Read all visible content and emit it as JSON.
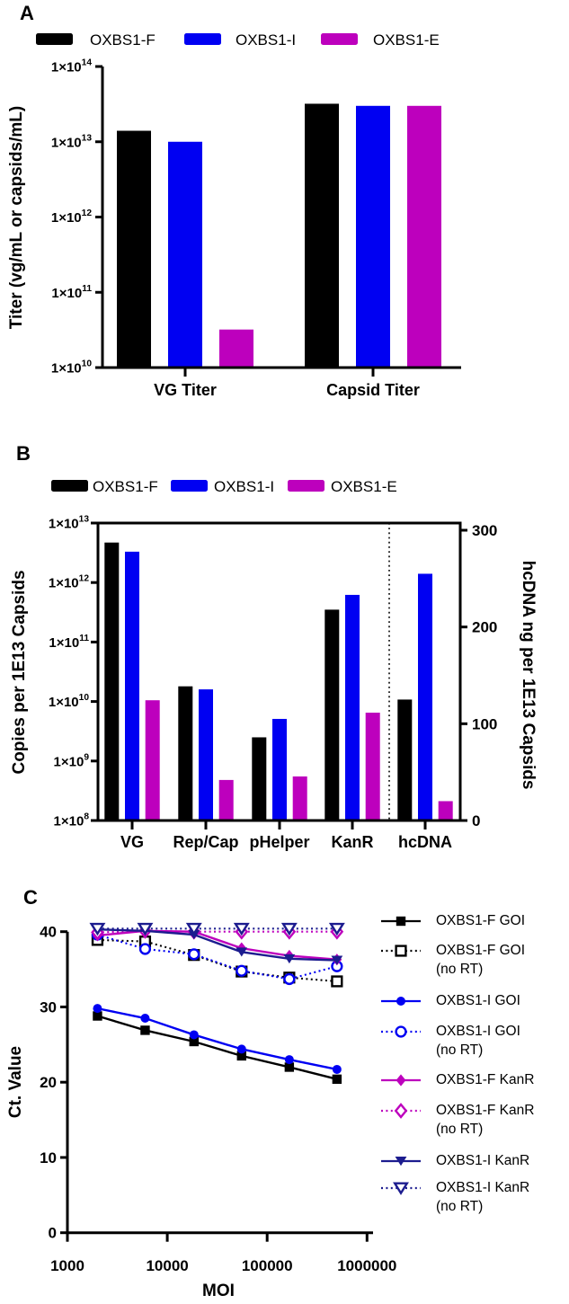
{
  "colors": {
    "black": "#000000",
    "blue": "#0000f2",
    "magenta": "#bd00bd",
    "navy": "#1c1c8f"
  },
  "panel_a": {
    "label": "A",
    "legend": [
      {
        "label": "OXBS1-F",
        "color": "black"
      },
      {
        "label": "OXBS1-I",
        "color": "blue"
      },
      {
        "label": "OXBS1-E",
        "color": "magenta"
      }
    ],
    "chart_data": {
      "type": "bar",
      "y_scale": "log",
      "ylabel": "Titer (vg/mL or capsids/mL)",
      "ylim": [
        10000000000.0,
        100000000000000.0
      ],
      "y_ticks": [
        "1×10^10",
        "1×10^11",
        "1×10^12",
        "1×10^13",
        "1×10^14"
      ],
      "categories": [
        "VG Titer",
        "Capsid Titer"
      ],
      "series": [
        {
          "name": "OXBS1-F",
          "color": "black",
          "values": [
            14000000000000.0,
            32000000000000.0
          ]
        },
        {
          "name": "OXBS1-I",
          "color": "blue",
          "values": [
            10000000000000.0,
            30000000000000.0
          ]
        },
        {
          "name": "OXBS1-E",
          "color": "magenta",
          "values": [
            32000000000.0,
            30000000000000.0
          ]
        }
      ]
    }
  },
  "panel_b": {
    "label": "B",
    "legend": [
      {
        "label": "OXBS1-F",
        "color": "black"
      },
      {
        "label": "OXBS1-I",
        "color": "blue"
      },
      {
        "label": "OXBS1-E",
        "color": "magenta"
      }
    ],
    "chart_data": {
      "type": "bar",
      "left_axis": {
        "label": "Copies per 1E13 Capsids",
        "scale": "log",
        "lim": [
          100000000.0,
          10000000000000.0
        ],
        "ticks": [
          "1×10^8",
          "1×10^9",
          "1×10^10",
          "1×10^11",
          "1×10^12",
          "1×10^13"
        ]
      },
      "right_axis": {
        "label": "hcDNA ng per 1E13 Capsids",
        "scale": "linear",
        "lim": [
          0,
          300
        ],
        "ticks": [
          0,
          100,
          200,
          300
        ]
      },
      "categories": [
        "VG",
        "Rep/Cap",
        "pHelper",
        "KanR",
        "hcDNA"
      ],
      "right_axis_category": "hcDNA",
      "separator_before": "hcDNA",
      "series": [
        {
          "name": "OXBS1-F",
          "color": "black",
          "copies": [
            4700000000000.0,
            18000000000.0,
            2500000000.0,
            350000000000.0
          ],
          "hcdna_ng": 125
        },
        {
          "name": "OXBS1-I",
          "color": "blue",
          "copies": [
            3300000000000.0,
            16000000000.0,
            5100000000.0,
            620000000000.0
          ],
          "hcdna_ng": 255
        },
        {
          "name": "OXBS1-E",
          "color": "magenta",
          "copies": [
            10500000000.0,
            480000000.0,
            550000000.0,
            6500000000.0
          ],
          "hcdna_ng": 20
        }
      ]
    }
  },
  "panel_c": {
    "label": "C",
    "chart_data": {
      "type": "line",
      "xlabel": "MOI",
      "ylabel": "Ct. Value",
      "x_scale": "log",
      "xlim": [
        1000,
        1000000
      ],
      "x_ticks": [
        "1000",
        "10000",
        "100000",
        "1000000"
      ],
      "ylim": [
        0,
        40
      ],
      "y_ticks": [
        0,
        10,
        20,
        30,
        40
      ],
      "moi": [
        2000,
        6000,
        18500,
        55500,
        166700,
        500000
      ],
      "series": [
        {
          "name": "OXBS1-F GOI",
          "color": "black",
          "marker": "square",
          "marker_fill": "solid",
          "line": "solid",
          "ct_values": [
            28.8,
            26.9,
            25.4,
            23.5,
            22.0,
            20.4
          ]
        },
        {
          "name": "OXBS1-F GOI (no RT)",
          "color": "black",
          "marker": "square",
          "marker_fill": "open",
          "line": "dotted",
          "ct_values": [
            38.9,
            38.7,
            36.9,
            34.7,
            33.9,
            33.4
          ]
        },
        {
          "name": "OXBS1-I GOI",
          "color": "blue",
          "marker": "circle",
          "marker_fill": "solid",
          "line": "solid",
          "ct_values": [
            29.8,
            28.5,
            26.3,
            24.4,
            23.0,
            21.7
          ]
        },
        {
          "name": "OXBS1-I GOI (no RT)",
          "color": "blue",
          "marker": "circle",
          "marker_fill": "open",
          "line": "dotted",
          "ct_values": [
            39.6,
            37.7,
            37.0,
            34.8,
            33.7,
            35.4
          ]
        },
        {
          "name": "OXBS1-F KanR",
          "color": "magenta",
          "marker": "diamond",
          "marker_fill": "solid",
          "line": "solid",
          "ct_values": [
            39.5,
            40.1,
            40.0,
            37.8,
            36.8,
            36.3
          ]
        },
        {
          "name": "OXBS1-F KanR (no RT)",
          "color": "magenta",
          "marker": "diamond",
          "marker_fill": "open",
          "line": "dotted",
          "ct_values": [
            39.9,
            40.1,
            40.0,
            40.0,
            40.0,
            40.0
          ]
        },
        {
          "name": "OXBS1-I KanR",
          "color": "navy",
          "marker": "triangle-down",
          "marker_fill": "solid",
          "line": "solid",
          "ct_values": [
            40.3,
            40.1,
            39.6,
            37.3,
            36.4,
            36.2
          ]
        },
        {
          "name": "OXBS1-I KanR (no RT)",
          "color": "navy",
          "marker": "triangle-down",
          "marker_fill": "open",
          "line": "dotted",
          "ct_values": [
            40.4,
            40.4,
            40.4,
            40.4,
            40.4,
            40.4
          ]
        }
      ]
    }
  }
}
